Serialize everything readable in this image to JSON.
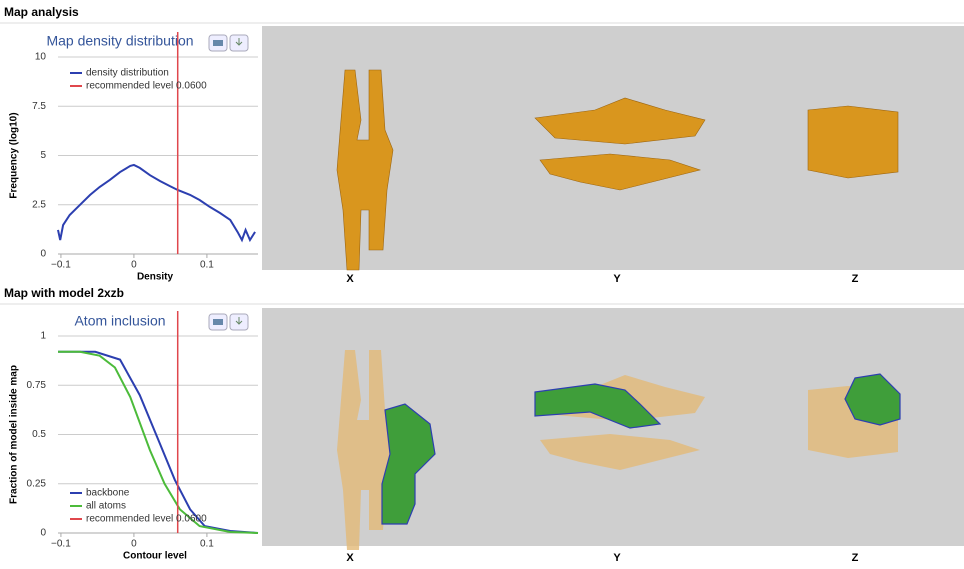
{
  "sections": [
    {
      "heading": "Map analysis",
      "views": [
        "X",
        "Y",
        "Z"
      ]
    },
    {
      "heading": "Map with model 2xzb",
      "views": [
        "X",
        "Y",
        "Z"
      ]
    }
  ],
  "chart_data": [
    {
      "type": "line",
      "title": "Map density distribution",
      "x_label": "Density",
      "y_label": "Frequency (log10)",
      "xlim": [
        -0.104,
        0.17
      ],
      "xticks": [
        {
          "value": -0.1,
          "label": "−0.1"
        },
        0,
        0.1
      ],
      "ylim": [
        0,
        10
      ],
      "yticks": [
        0,
        2.5,
        5,
        7.5,
        10
      ],
      "grid": true,
      "legend": "upper left",
      "series": [
        {
          "name": "density distribution",
          "color": "#2c3fb0",
          "x": [
            -0.104,
            -0.101,
            -0.097,
            -0.088,
            -0.074,
            -0.06,
            -0.047,
            -0.033,
            -0.019,
            -0.005,
            0,
            0.008,
            0.022,
            0.036,
            0.049,
            0.06,
            0.077,
            0.09,
            0.104,
            0.118,
            0.132,
            0.142,
            0.148,
            0.153,
            0.159,
            0.166
          ],
          "values": [
            1.22,
            0.71,
            1.47,
            1.98,
            2.49,
            3.0,
            3.4,
            3.76,
            4.16,
            4.47,
            4.52,
            4.37,
            4.0,
            3.7,
            3.45,
            3.25,
            3.0,
            2.74,
            2.39,
            2.08,
            1.73,
            1.12,
            0.71,
            1.22,
            0.71,
            1.12
          ]
        }
      ],
      "reference_line": {
        "value": 0.06,
        "label": "recommended level 0.0600",
        "color": "#e0474c"
      }
    },
    {
      "type": "line",
      "title": "Atom inclusion",
      "x_label": "Contour level",
      "y_label": "Fraction of model inside map",
      "xlim": [
        -0.104,
        0.17
      ],
      "xticks": [
        {
          "value": -0.1,
          "label": "−0.1"
        },
        0,
        0.1
      ],
      "ylim": [
        0,
        1
      ],
      "yticks": [
        0,
        0.25,
        0.5,
        0.75,
        1
      ],
      "grid": true,
      "legend": "lower left",
      "series": [
        {
          "name": "backbone",
          "color": "#2c3fb0",
          "x": [
            -0.104,
            -0.053,
            -0.019,
            0.008,
            0.036,
            0.056,
            0.077,
            0.097,
            0.132,
            0.17
          ],
          "values": [
            0.92,
            0.92,
            0.88,
            0.7,
            0.45,
            0.27,
            0.12,
            0.035,
            0.01,
            0
          ]
        },
        {
          "name": "all atoms",
          "color": "#4cbb3a",
          "x": [
            -0.104,
            -0.074,
            -0.047,
            -0.026,
            -0.005,
            0.022,
            0.042,
            0.063,
            0.09,
            0.132,
            0.17
          ],
          "values": [
            0.92,
            0.92,
            0.9,
            0.84,
            0.69,
            0.42,
            0.25,
            0.12,
            0.035,
            0.005,
            0
          ]
        }
      ],
      "reference_line": {
        "value": 0.06,
        "label": "recommended level 0.0600",
        "color": "#e0474c"
      }
    }
  ]
}
